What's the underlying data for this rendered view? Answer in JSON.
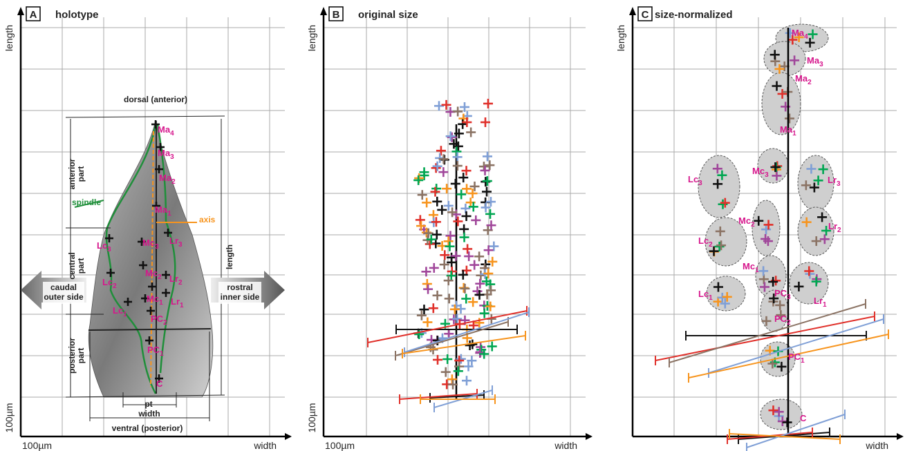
{
  "panels": [
    {
      "letter": "A",
      "title": "holotype",
      "axis_y": "length",
      "axis_x": "width",
      "scale_y": "100µm",
      "scale_x": "100µm",
      "annotations": {
        "dorsal": "dorsal (anterior)",
        "ventral": "ventral (posterior)",
        "anterior_part": [
          "anterior",
          "part"
        ],
        "central_part": [
          "central",
          "part"
        ],
        "posterior_part": [
          "posterior",
          "part"
        ],
        "length": "length",
        "pt": "pt",
        "width": "width",
        "spindle": "spindle",
        "axis": "axis",
        "caudal": [
          "caudal",
          "outer side"
        ],
        "rostral": [
          "rostral",
          "inner side"
        ]
      },
      "landmarks": [
        {
          "name": "Ma",
          "sub": "4"
        },
        {
          "name": "Ma",
          "sub": "3"
        },
        {
          "name": "Ma",
          "sub": "2"
        },
        {
          "name": "Ma",
          "sub": "1"
        },
        {
          "name": "Lc",
          "sub": "3"
        },
        {
          "name": "Mc",
          "sub": "3"
        },
        {
          "name": "Lr",
          "sub": "3"
        },
        {
          "name": "Lc",
          "sub": "2"
        },
        {
          "name": "Mc",
          "sub": "2"
        },
        {
          "name": "Lr",
          "sub": "2"
        },
        {
          "name": "Mc",
          "sub": "1"
        },
        {
          "name": "Lr",
          "sub": "1"
        },
        {
          "name": "Lc",
          "sub": "1"
        },
        {
          "name": "PC",
          "sub": "2"
        },
        {
          "name": "PC",
          "sub": "1"
        },
        {
          "name": "C"
        }
      ]
    },
    {
      "letter": "B",
      "title": "original size",
      "axis_y": "length",
      "axis_x": "width",
      "scale_y": "100µm",
      "scale_x": "100µm"
    },
    {
      "letter": "C",
      "title": "size-normalized",
      "axis_y": "length",
      "axis_x": "width",
      "landmarks": [
        {
          "name": "Ma",
          "sub": "4"
        },
        {
          "name": "Ma",
          "sub": "3"
        },
        {
          "name": "Ma",
          "sub": "2"
        },
        {
          "name": "Ma",
          "sub": "1"
        },
        {
          "name": "Lc",
          "sub": "3"
        },
        {
          "name": "Mc",
          "sub": "3"
        },
        {
          "name": "Lr",
          "sub": "3"
        },
        {
          "name": "Mc",
          "sub": "2"
        },
        {
          "name": "Lr",
          "sub": "2"
        },
        {
          "name": "Lc",
          "sub": "2"
        },
        {
          "name": "Mc",
          "sub": "1"
        },
        {
          "name": "Lc",
          "sub": "1"
        },
        {
          "name": "PC",
          "sub": "3"
        },
        {
          "name": "Lr",
          "sub": "1"
        },
        {
          "name": "PC",
          "sub": "2"
        },
        {
          "name": "PC",
          "sub": "1"
        },
        {
          "name": "C"
        }
      ]
    }
  ]
}
